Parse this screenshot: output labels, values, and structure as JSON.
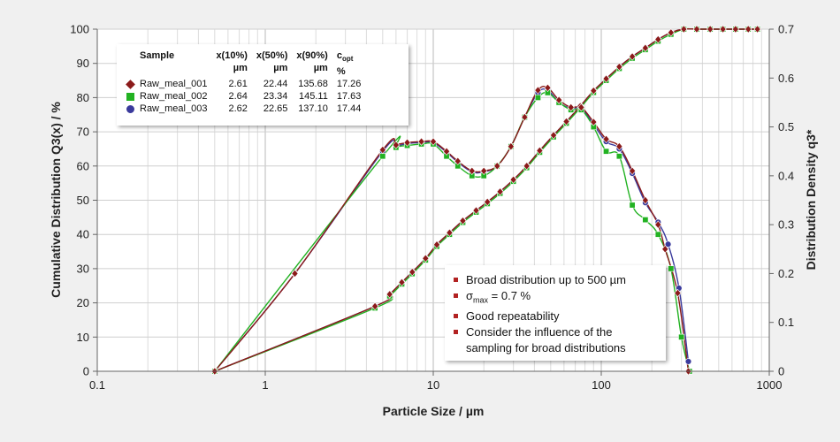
{
  "chart_data": {
    "type": "line",
    "xlabel": "Particle Size / µm",
    "ylabel_left": "Cumulative Distribution Q3(x) / %",
    "ylabel_right": "Distribution Density q3*",
    "x_scale": "log",
    "xlim": [
      0.1,
      1000
    ],
    "ylim_left": [
      0,
      100
    ],
    "ylim_right": [
      0,
      0.7
    ],
    "x_ticks": [
      "0.1",
      "1",
      "10",
      "100",
      "1000"
    ],
    "y_left_ticks": [
      "0",
      "10",
      "20",
      "30",
      "40",
      "50",
      "60",
      "70",
      "80",
      "90",
      "100"
    ],
    "y_right_ticks": [
      "0",
      "0.1",
      "0.2",
      "0.3",
      "0.4",
      "0.5",
      "0.6",
      "0.7"
    ],
    "grid": true,
    "series": [
      {
        "name": "Raw_meal_001",
        "color": "#8b1a1a",
        "marker": "diamond",
        "cumulative": [
          [
            0.5,
            0
          ],
          [
            4.5,
            19
          ],
          [
            5.5,
            22.5
          ],
          [
            6.5,
            26
          ],
          [
            7.5,
            29
          ],
          [
            9,
            33
          ],
          [
            10.5,
            37
          ],
          [
            12.5,
            40.5
          ],
          [
            15,
            44
          ],
          [
            18,
            47
          ],
          [
            21,
            49.5
          ],
          [
            25,
            52.5
          ],
          [
            30,
            56
          ],
          [
            36,
            60
          ],
          [
            43,
            64.5
          ],
          [
            52,
            69
          ],
          [
            62,
            73
          ],
          [
            75,
            77.5
          ],
          [
            90,
            82
          ],
          [
            107,
            85.5
          ],
          [
            128,
            89
          ],
          [
            153,
            92
          ],
          [
            183,
            94.5
          ],
          [
            218,
            97
          ],
          [
            260,
            99
          ],
          [
            310,
            100
          ],
          [
            370,
            100
          ],
          [
            445,
            100
          ],
          [
            530,
            100
          ],
          [
            630,
            100
          ],
          [
            750,
            100
          ],
          [
            850,
            100
          ]
        ],
        "density": [
          [
            0.5,
            0
          ],
          [
            1.5,
            0.2
          ],
          [
            5,
            0.453
          ],
          [
            6,
            0.463
          ],
          [
            7,
            0.468
          ],
          [
            8.5,
            0.47
          ],
          [
            10,
            0.47
          ],
          [
            12,
            0.45
          ],
          [
            14,
            0.43
          ],
          [
            17,
            0.41
          ],
          [
            20,
            0.41
          ],
          [
            24,
            0.42
          ],
          [
            29,
            0.46
          ],
          [
            35,
            0.52
          ],
          [
            42,
            0.575
          ],
          [
            48,
            0.58
          ],
          [
            56,
            0.555
          ],
          [
            66,
            0.54
          ],
          [
            76,
            0.54
          ],
          [
            90,
            0.51
          ],
          [
            107,
            0.475
          ],
          [
            128,
            0.46
          ],
          [
            153,
            0.41
          ],
          [
            183,
            0.35
          ],
          [
            218,
            0.3
          ],
          [
            240,
            0.25
          ],
          [
            285,
            0.16
          ],
          [
            330,
            0.0
          ]
        ]
      },
      {
        "name": "Raw_meal_002",
        "color": "#22b222",
        "marker": "square",
        "cumulative": [
          [
            0.5,
            0
          ],
          [
            4.5,
            18.5
          ],
          [
            5.5,
            22
          ],
          [
            6.5,
            25.5
          ],
          [
            7.5,
            28.5
          ],
          [
            9,
            32.5
          ],
          [
            10.5,
            36.5
          ],
          [
            12.5,
            40
          ],
          [
            15,
            43.5
          ],
          [
            18,
            46.5
          ],
          [
            21,
            49
          ],
          [
            25,
            52
          ],
          [
            30,
            55.5
          ],
          [
            36,
            59.5
          ],
          [
            43,
            64
          ],
          [
            52,
            68.5
          ],
          [
            62,
            72.5
          ],
          [
            75,
            77
          ],
          [
            90,
            81.5
          ],
          [
            107,
            85
          ],
          [
            128,
            88.5
          ],
          [
            153,
            91.5
          ],
          [
            183,
            94
          ],
          [
            218,
            96.5
          ],
          [
            260,
            98.5
          ],
          [
            310,
            100
          ],
          [
            370,
            100
          ],
          [
            445,
            100
          ],
          [
            530,
            100
          ],
          [
            630,
            100
          ],
          [
            750,
            100
          ],
          [
            850,
            100
          ]
        ],
        "density": [
          [
            0.5,
            0
          ],
          [
            5,
            0.44
          ],
          [
            6,
            0.458
          ],
          [
            7,
            0.462
          ],
          [
            8.5,
            0.465
          ],
          [
            10,
            0.465
          ],
          [
            12,
            0.44
          ],
          [
            14,
            0.42
          ],
          [
            17,
            0.4
          ],
          [
            20,
            0.4
          ],
          [
            24,
            0.42
          ],
          [
            29,
            0.46
          ],
          [
            35,
            0.52
          ],
          [
            42,
            0.56
          ],
          [
            48,
            0.57
          ],
          [
            56,
            0.55
          ],
          [
            66,
            0.535
          ],
          [
            76,
            0.535
          ],
          [
            90,
            0.5
          ],
          [
            107,
            0.45
          ],
          [
            128,
            0.44
          ],
          [
            153,
            0.34
          ],
          [
            183,
            0.31
          ],
          [
            218,
            0.28
          ],
          [
            260,
            0.21
          ],
          [
            300,
            0.07
          ],
          [
            335,
            0.0
          ]
        ]
      },
      {
        "name": "Raw_meal_003",
        "color": "#3a3a9c",
        "marker": "circle",
        "cumulative": [
          [
            0.5,
            0
          ],
          [
            4.5,
            19
          ],
          [
            5.5,
            22.5
          ],
          [
            6.5,
            26
          ],
          [
            7.5,
            29
          ],
          [
            9,
            33
          ],
          [
            10.5,
            37
          ],
          [
            12.5,
            40.5
          ],
          [
            15,
            44
          ],
          [
            18,
            47
          ],
          [
            21,
            49.5
          ],
          [
            25,
            52.5
          ],
          [
            30,
            56
          ],
          [
            36,
            60
          ],
          [
            43,
            64.5
          ],
          [
            52,
            69
          ],
          [
            62,
            73
          ],
          [
            75,
            77.5
          ],
          [
            90,
            82
          ],
          [
            107,
            85.5
          ],
          [
            128,
            89
          ],
          [
            153,
            92
          ],
          [
            183,
            94.5
          ],
          [
            218,
            97
          ],
          [
            260,
            99
          ],
          [
            310,
            100
          ],
          [
            370,
            100
          ],
          [
            445,
            100
          ],
          [
            530,
            100
          ],
          [
            630,
            100
          ],
          [
            750,
            100
          ],
          [
            850,
            100
          ]
        ],
        "density": [
          [
            0.5,
            0
          ],
          [
            1.5,
            0.2
          ],
          [
            5,
            0.45
          ],
          [
            6,
            0.46
          ],
          [
            7,
            0.466
          ],
          [
            8.5,
            0.468
          ],
          [
            10,
            0.468
          ],
          [
            12,
            0.448
          ],
          [
            14,
            0.428
          ],
          [
            17,
            0.408
          ],
          [
            20,
            0.408
          ],
          [
            24,
            0.42
          ],
          [
            29,
            0.46
          ],
          [
            35,
            0.52
          ],
          [
            42,
            0.57
          ],
          [
            48,
            0.575
          ],
          [
            56,
            0.55
          ],
          [
            66,
            0.538
          ],
          [
            76,
            0.538
          ],
          [
            90,
            0.505
          ],
          [
            107,
            0.47
          ],
          [
            128,
            0.455
          ],
          [
            153,
            0.405
          ],
          [
            183,
            0.345
          ],
          [
            218,
            0.305
          ],
          [
            250,
            0.26
          ],
          [
            290,
            0.17
          ],
          [
            330,
            0.02
          ]
        ]
      }
    ]
  },
  "legend": {
    "headers": {
      "sample": "Sample",
      "x10": "x(10%)",
      "x10_unit": "µm",
      "x50": "x(50%)",
      "x50_unit": "µm",
      "x90": "x(90%)",
      "x90_unit": "µm",
      "copt_main": "c",
      "copt_sub": "opt",
      "copt_unit": "%"
    },
    "rows": [
      {
        "name": "Raw_meal_001",
        "x10": "2.61",
        "x50": "22.44",
        "x90": "135.68",
        "copt": "17.26",
        "color": "#8b1a1a",
        "marker": "diamond"
      },
      {
        "name": "Raw_meal_002",
        "x10": "2.64",
        "x50": "23.34",
        "x90": "145.11",
        "copt": "17.63",
        "color": "#22b222",
        "marker": "square"
      },
      {
        "name": "Raw_meal_003",
        "x10": "2.62",
        "x50": "22.65",
        "x90": "137.10",
        "copt": "17.44",
        "color": "#3a3a9c",
        "marker": "circle"
      }
    ]
  },
  "notes": {
    "item1": "Broad distribution up to 500 µm",
    "item2_main": "σ",
    "item2_sub": "max",
    "item2_rest": " = 0.7 %",
    "item3": "Good repeatability",
    "item4_line1": "Consider the influence of the",
    "item4_line2": "sampling for broad distributions"
  }
}
